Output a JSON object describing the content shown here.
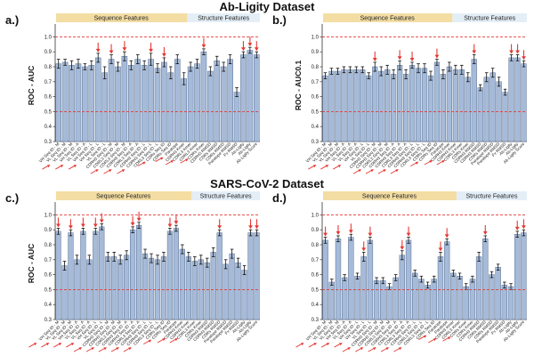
{
  "titles": {
    "top": "Ab-Ligity Dataset",
    "bottom": "SARS-CoV-2 Dataset"
  },
  "colors": {
    "bar": "#a6bbd9",
    "bar_edge": "#5a6f8f",
    "ref_line": "#e53935",
    "arrow": "#e53935",
    "seq_header": "#f3dda3",
    "struct_header": "#e4eef7"
  },
  "feature_labels": [
    "VH Seq ID - M",
    "VL Seq ID - M",
    "VH Seq ID - A",
    "VL Seq ID - A",
    "VH Seq ID - L",
    "VL Seq ID - L",
    "CDRH3 Seq ID - M",
    "CDRL3 Seq ID - M",
    "CDRH3 Seq ID - A",
    "CDRL3 Seq ID - A",
    "CDRH3 Seq ID - L",
    "CDRL3 Seq ID - L",
    "CDRs Seq ID",
    "Paratope",
    "CDRH3 Kmer",
    "CDRL3 Kmer",
    "CDRs Kmer",
    "CDRH3 RMSD",
    "CDRs RMSD",
    "Paratope RMSD",
    "Fv RMSD",
    "Ab-Ligity",
    "Ab-Ligity Score"
  ],
  "chart_data": [
    {
      "id": "a",
      "panel_label": "a.)",
      "type": "bar",
      "ylabel": "ROC - AUC",
      "ylim": [
        0.3,
        1.05
      ],
      "yticks": [
        "0.3",
        "0.4",
        "0.5",
        "0.6",
        "0.7",
        "0.8",
        "0.9",
        "1.0"
      ],
      "ref_lines": [
        0.5,
        1.0
      ],
      "seq_header": "Sequence Features",
      "struct_header": "Structure Features",
      "seq_count": 20,
      "values": [
        0.82,
        0.83,
        0.81,
        0.82,
        0.8,
        0.81,
        0.86,
        0.76,
        0.85,
        0.8,
        0.87,
        0.81,
        0.85,
        0.81,
        0.85,
        0.79,
        0.83,
        0.76,
        0.85,
        0.72,
        0.8,
        0.82,
        0.9,
        0.77,
        0.84,
        0.8,
        0.85,
        0.63,
        0.88,
        0.91,
        0.88
      ],
      "errors": [
        0.03,
        0.02,
        0.03,
        0.03,
        0.02,
        0.03,
        0.03,
        0.04,
        0.03,
        0.03,
        0.03,
        0.03,
        0.03,
        0.03,
        0.04,
        0.03,
        0.03,
        0.04,
        0.03,
        0.04,
        0.03,
        0.03,
        0.02,
        0.03,
        0.03,
        0.03,
        0.03,
        0.03,
        0.02,
        0.02,
        0.02
      ],
      "arrows": [
        6,
        8,
        10,
        14,
        16,
        22,
        28,
        29,
        30
      ],
      "label_arrows": [
        2,
        4,
        6,
        10,
        12,
        14,
        16,
        18,
        20,
        22
      ]
    },
    {
      "id": "b",
      "panel_label": "b.)",
      "type": "bar",
      "ylabel": "ROC - AUC0.1",
      "ylim": [
        0.3,
        1.05
      ],
      "yticks": [
        "0.3",
        "0.4",
        "0.5",
        "0.6",
        "0.7",
        "0.8",
        "0.9",
        "1.0"
      ],
      "ref_lines": [
        0.5,
        1.0
      ],
      "seq_header": "Sequence Features",
      "struct_header": "Structure Features",
      "seq_count": 21,
      "values": [
        0.74,
        0.77,
        0.77,
        0.78,
        0.78,
        0.78,
        0.78,
        0.74,
        0.8,
        0.77,
        0.78,
        0.75,
        0.81,
        0.75,
        0.81,
        0.79,
        0.79,
        0.74,
        0.83,
        0.75,
        0.8,
        0.78,
        0.78,
        0.73,
        0.85,
        0.66,
        0.73,
        0.76,
        0.7,
        0.63,
        0.86,
        0.86,
        0.82
      ],
      "errors": [
        0.02,
        0.02,
        0.02,
        0.02,
        0.02,
        0.02,
        0.02,
        0.02,
        0.03,
        0.03,
        0.03,
        0.03,
        0.03,
        0.03,
        0.02,
        0.03,
        0.03,
        0.03,
        0.02,
        0.03,
        0.03,
        0.03,
        0.03,
        0.03,
        0.03,
        0.02,
        0.03,
        0.03,
        0.03,
        0.02,
        0.02,
        0.02,
        0.02
      ],
      "arrows": [
        8,
        12,
        14,
        18,
        24,
        30,
        31,
        32
      ],
      "label_arrows": [
        2,
        4,
        6,
        10,
        12,
        14,
        16,
        18,
        20,
        22
      ]
    },
    {
      "id": "c",
      "panel_label": "c.)",
      "type": "bar",
      "ylabel": "ROC - AUC",
      "ylim": [
        0.3,
        1.05
      ],
      "yticks": [
        "0.3",
        "0.4",
        "0.5",
        "0.6",
        "0.7",
        "0.8",
        "0.9",
        "1.0"
      ],
      "ref_lines": [
        0.5,
        1.0
      ],
      "seq_header": "Sequence Features",
      "struct_header": "Structure Features",
      "seq_count": 22,
      "values": [
        0.89,
        0.66,
        0.88,
        0.7,
        0.89,
        0.7,
        0.89,
        0.92,
        0.72,
        0.72,
        0.7,
        0.73,
        0.9,
        0.93,
        0.74,
        0.71,
        0.7,
        0.72,
        0.89,
        0.91,
        0.77,
        0.72,
        0.69,
        0.7,
        0.68,
        0.75,
        0.88,
        0.67,
        0.74,
        0.68,
        0.63,
        0.88,
        0.88
      ],
      "errors": [
        0.02,
        0.03,
        0.02,
        0.03,
        0.02,
        0.03,
        0.02,
        0.02,
        0.03,
        0.03,
        0.03,
        0.03,
        0.02,
        0.02,
        0.03,
        0.03,
        0.03,
        0.03,
        0.02,
        0.02,
        0.03,
        0.03,
        0.03,
        0.03,
        0.03,
        0.03,
        0.02,
        0.03,
        0.03,
        0.03,
        0.03,
        0.02,
        0.02
      ],
      "arrows": [
        0,
        2,
        4,
        6,
        7,
        12,
        13,
        18,
        19,
        26,
        31,
        32
      ],
      "label_arrows": [
        0,
        2,
        4,
        6,
        8,
        10,
        12,
        14,
        16,
        18,
        20,
        22
      ]
    },
    {
      "id": "d",
      "panel_label": "d.)",
      "type": "bar",
      "ylabel": "",
      "ylim": [
        0.3,
        1.05
      ],
      "yticks": [
        "0.3",
        "0.4",
        "0.5",
        "0.6",
        "0.7",
        "0.8",
        "0.9",
        "1.0"
      ],
      "ref_lines": [
        0.5,
        1.0
      ],
      "seq_header": "Sequence Features",
      "struct_header": "Structure Features",
      "seq_count": 21,
      "values": [
        0.83,
        0.55,
        0.84,
        0.58,
        0.85,
        0.59,
        0.72,
        0.83,
        0.56,
        0.56,
        0.52,
        0.58,
        0.73,
        0.83,
        0.61,
        0.57,
        0.53,
        0.57,
        0.72,
        0.82,
        0.61,
        0.59,
        0.52,
        0.57,
        0.72,
        0.84,
        0.6,
        0.65,
        0.53,
        0.52,
        0.87,
        0.88
      ],
      "errors": [
        0.02,
        0.02,
        0.02,
        0.02,
        0.02,
        0.02,
        0.03,
        0.02,
        0.02,
        0.02,
        0.02,
        0.02,
        0.03,
        0.02,
        0.02,
        0.02,
        0.02,
        0.02,
        0.03,
        0.02,
        0.02,
        0.02,
        0.02,
        0.02,
        0.03,
        0.02,
        0.02,
        0.02,
        0.02,
        0.02,
        0.02,
        0.02
      ],
      "arrows": [
        0,
        2,
        4,
        6,
        7,
        12,
        13,
        18,
        19,
        25,
        30,
        31
      ],
      "label_arrows": [
        0,
        2,
        4,
        6,
        8,
        10,
        12,
        14,
        16,
        18,
        20,
        22
      ]
    }
  ]
}
